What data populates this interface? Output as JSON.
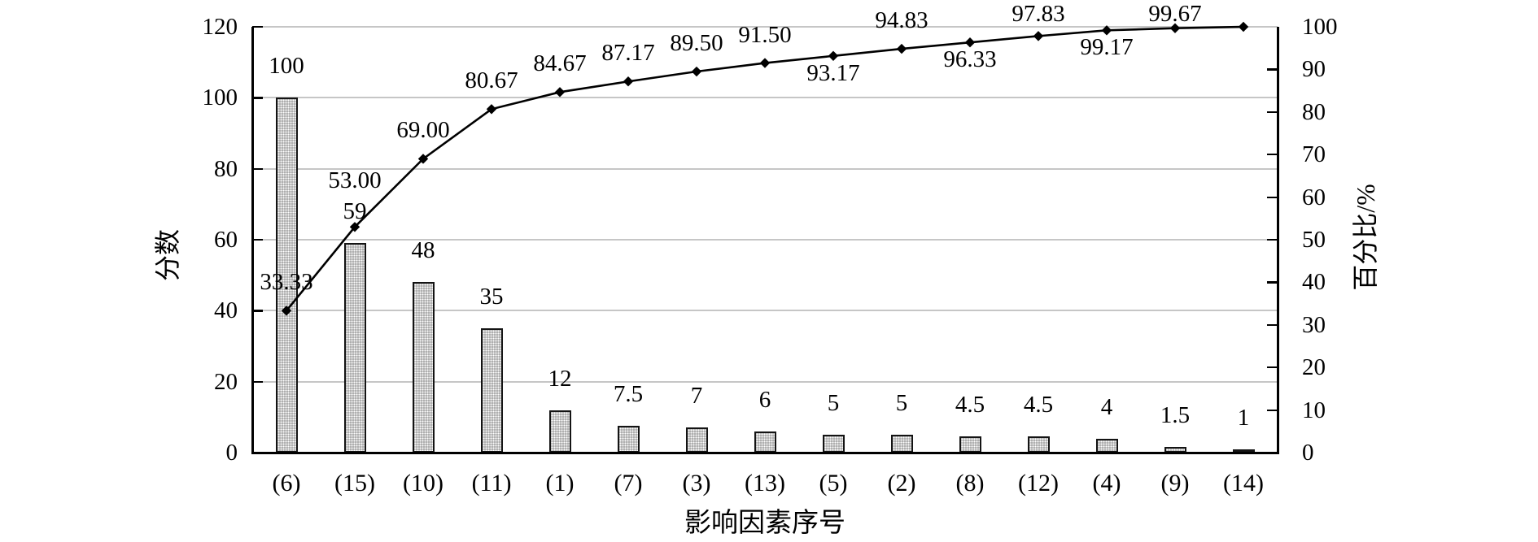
{
  "colors": {
    "background": "#ffffff",
    "gridline": "#c6c6c6",
    "axis": "#000000",
    "bar_fill": "#ababab",
    "bar_dot": "#ffffff",
    "bar_border": "#141414",
    "line": "#000000",
    "marker": "#000000",
    "text": "#000000"
  },
  "chart_data": {
    "type": "pareto (bar + cumulative line)",
    "categories": [
      "(6)",
      "(15)",
      "(10)",
      "(11)",
      "(1)",
      "(7)",
      "(3)",
      "(13)",
      "(5)",
      "(2)",
      "(8)",
      "(12)",
      "(4)",
      "(9)",
      "(14)"
    ],
    "series": [
      {
        "name": "score-bars",
        "type": "bar",
        "axis": "left",
        "values": [
          100,
          59,
          48,
          35,
          12,
          7.5,
          7,
          6,
          5,
          5,
          4.5,
          4.5,
          4,
          1.5,
          1
        ],
        "data_labels": [
          "100",
          "59",
          "48",
          "35",
          "12",
          "7.5",
          "7",
          "6",
          "5",
          "5",
          "4.5",
          "4.5",
          "4",
          "1.5",
          "1"
        ]
      },
      {
        "name": "cumulative-percent-line",
        "type": "line",
        "axis": "right",
        "values": [
          33.33,
          53.0,
          69.0,
          80.67,
          84.67,
          87.17,
          89.5,
          91.5,
          93.17,
          94.83,
          96.33,
          97.83,
          99.17,
          99.67,
          100.0
        ],
        "data_labels": [
          "33.33",
          "53.00",
          "69.00",
          "80.67",
          "84.67",
          "87.17",
          "89.50",
          "91.50",
          "93.17",
          "94.83",
          "96.33",
          "97.83",
          "99.17",
          "99.67",
          ""
        ],
        "label_sides": [
          "above",
          "above-stacked",
          "above",
          "above",
          "above",
          "above",
          "above",
          "above",
          "below",
          "above",
          "below",
          "above",
          "below",
          "above",
          "none"
        ]
      }
    ],
    "left_axis": {
      "label": "分数",
      "min": 0,
      "max": 120,
      "step": 20,
      "tick_labels": [
        "0",
        "20",
        "40",
        "60",
        "80",
        "100",
        "120"
      ]
    },
    "right_axis": {
      "label": "百分比/%",
      "min": 0,
      "max": 100,
      "step": 10,
      "tick_labels": [
        "0",
        "10",
        "20",
        "30",
        "40",
        "50",
        "60",
        "70",
        "80",
        "90",
        "100"
      ]
    },
    "x_axis": {
      "label": "影响因素序号"
    },
    "grid": "horizontal gridlines at left-axis steps of 20",
    "legend": "none",
    "title": ""
  }
}
